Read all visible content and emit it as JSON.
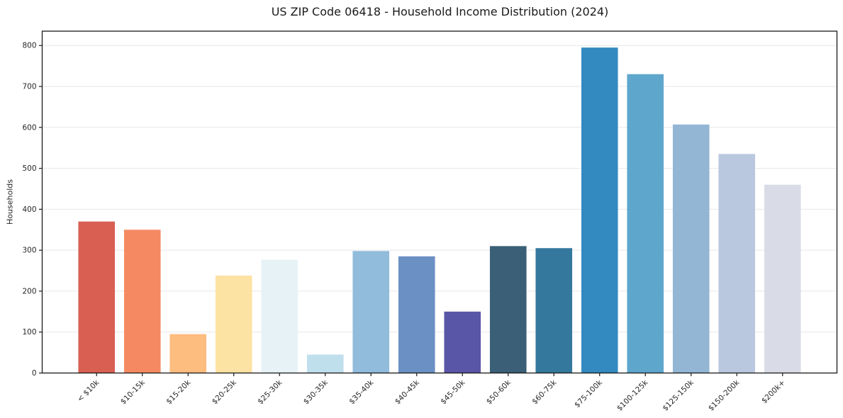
{
  "figure": {
    "background": "#ffffff",
    "spine_color": "#1a1a1a",
    "grid_color": "#e7e7e7",
    "text_color": "#262626"
  },
  "chart_data": {
    "type": "bar",
    "title": "US ZIP Code 06418 - Household Income Distribution (2024)",
    "xlabel": "",
    "ylabel": "Households",
    "categories": [
      "< $10k",
      "$10-15k",
      "$15-20k",
      "$20-25k",
      "$25-30k",
      "$30-35k",
      "$35-40k",
      "$40-45k",
      "$45-50k",
      "$50-60k",
      "$60-75k",
      "$75-100k",
      "$100-125k",
      "$125-150k",
      "$150-200k",
      "$200k+"
    ],
    "values": [
      370,
      350,
      95,
      238,
      277,
      45,
      298,
      285,
      150,
      310,
      305,
      795,
      730,
      607,
      535,
      460
    ],
    "bar_colors": [
      "#d95f53",
      "#f58a62",
      "#fcbd7f",
      "#fde3a3",
      "#e7f2f6",
      "#c0dfec",
      "#91bcdc",
      "#6b90c4",
      "#5a56a7",
      "#3a5f76",
      "#35789d",
      "#338ac1",
      "#5fa6cd",
      "#93b6d5",
      "#b9c8de",
      "#d9dbe7"
    ],
    "yticks": [
      0,
      100,
      200,
      300,
      400,
      500,
      600,
      700,
      800
    ],
    "ylim": [
      0,
      835
    ],
    "grid": "horizontal",
    "legend": "none",
    "x_tick_rotation_deg": 45
  }
}
